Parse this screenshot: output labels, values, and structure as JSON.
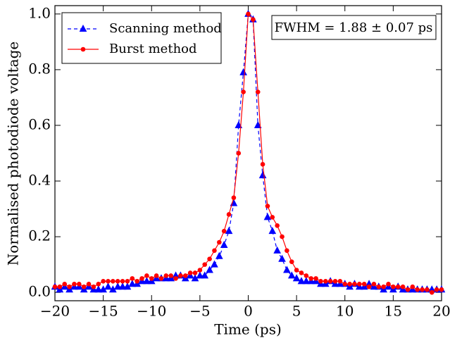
{
  "chart_data": {
    "type": "line",
    "xlabel": "Time (ps)",
    "ylabel": "Normalised photodiode voltage",
    "annotation": "FWHM = 1.88 ± 0.07 ps",
    "legend": "upper left",
    "x": [
      -20,
      -19.5,
      -19,
      -18.5,
      -18,
      -17.5,
      -17,
      -16.5,
      -16,
      -15.5,
      -15,
      -14.5,
      -14,
      -13.5,
      -13,
      -12.5,
      -12,
      -11.5,
      -11,
      -10.5,
      -10,
      -9.5,
      -9,
      -8.5,
      -8,
      -7.5,
      -7,
      -6.5,
      -6,
      -5.5,
      -5,
      -4.5,
      -4,
      -3.5,
      -3,
      -2.5,
      -2,
      -1.5,
      -1,
      -0.5,
      0,
      0.5,
      1,
      1.5,
      2,
      2.5,
      3,
      3.5,
      4,
      4.5,
      5,
      5.5,
      6,
      6.5,
      7,
      7.5,
      8,
      8.5,
      9,
      9.5,
      10,
      10.5,
      11,
      11.5,
      12,
      12.5,
      13,
      13.5,
      14,
      14.5,
      15,
      15.5,
      16,
      16.5,
      17,
      17.5,
      18,
      18.5,
      19,
      19.5,
      20
    ],
    "series": [
      {
        "name": "Scanning method",
        "color": "#0000ff",
        "marker": "triangle",
        "dashed": true,
        "values": [
          0.02,
          0.01,
          0.02,
          0.01,
          0.02,
          0.02,
          0.01,
          0.02,
          0.01,
          0.01,
          0.01,
          0.02,
          0.01,
          0.02,
          0.02,
          0.02,
          0.03,
          0.03,
          0.04,
          0.04,
          0.04,
          0.05,
          0.05,
          0.05,
          0.05,
          0.06,
          0.06,
          0.05,
          0.06,
          0.05,
          0.06,
          0.06,
          0.08,
          0.1,
          0.13,
          0.17,
          0.22,
          0.32,
          0.6,
          0.79,
          1.0,
          0.98,
          0.6,
          0.42,
          0.27,
          0.22,
          0.15,
          0.12,
          0.08,
          0.06,
          0.05,
          0.04,
          0.04,
          0.04,
          0.04,
          0.03,
          0.03,
          0.04,
          0.03,
          0.03,
          0.03,
          0.02,
          0.03,
          0.02,
          0.02,
          0.03,
          0.02,
          0.02,
          0.01,
          0.02,
          0.01,
          0.02,
          0.01,
          0.01,
          0.01,
          0.01,
          0.01,
          0.01,
          0.01,
          0.01,
          0.01
        ]
      },
      {
        "name": "Burst method",
        "color": "#ff0000",
        "marker": "circle",
        "dashed": false,
        "values": [
          0.02,
          0.02,
          0.03,
          0.02,
          0.03,
          0.03,
          0.02,
          0.03,
          0.02,
          0.03,
          0.04,
          0.04,
          0.04,
          0.04,
          0.04,
          0.04,
          0.05,
          0.04,
          0.05,
          0.06,
          0.05,
          0.06,
          0.05,
          0.06,
          0.06,
          0.05,
          0.06,
          0.06,
          0.07,
          0.07,
          0.08,
          0.1,
          0.12,
          0.15,
          0.18,
          0.22,
          0.28,
          0.34,
          0.5,
          0.72,
          1.0,
          0.98,
          0.72,
          0.46,
          0.31,
          0.27,
          0.24,
          0.2,
          0.15,
          0.11,
          0.08,
          0.07,
          0.06,
          0.05,
          0.05,
          0.04,
          0.04,
          0.04,
          0.04,
          0.04,
          0.03,
          0.03,
          0.03,
          0.03,
          0.03,
          0.02,
          0.03,
          0.02,
          0.02,
          0.03,
          0.02,
          0.02,
          0.02,
          0.01,
          0.02,
          0.01,
          0.01,
          0.01,
          0.0,
          0.01,
          0.01
        ]
      }
    ],
    "xlim": [
      -20,
      20
    ],
    "xticks": [
      {
        "value": -20,
        "label": "−20"
      },
      {
        "value": -15,
        "label": "−15"
      },
      {
        "value": -10,
        "label": "−10"
      },
      {
        "value": -5,
        "label": "−5"
      },
      0,
      5,
      10,
      15,
      20
    ],
    "ylim": [
      -0.03,
      1.03
    ],
    "yticks": [
      {
        "value": 0,
        "label": "0.0"
      },
      0.2,
      0.4,
      0.6,
      0.8,
      {
        "value": 1,
        "label": "1.0"
      }
    ]
  }
}
